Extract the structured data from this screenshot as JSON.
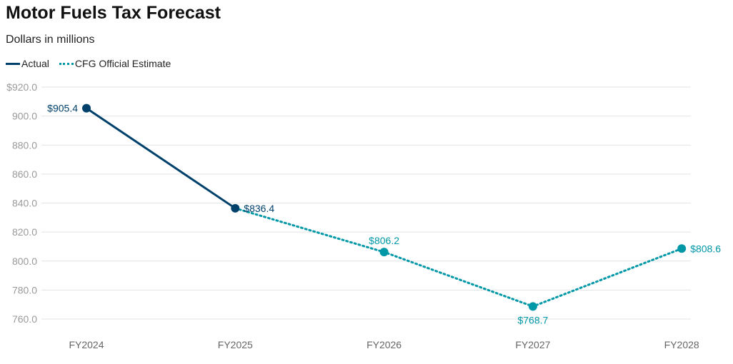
{
  "chart_data": {
    "type": "line",
    "title": "Motor Fuels Tax Forecast",
    "subtitle": "Dollars in millions",
    "categories": [
      "FY2024",
      "FY2025",
      "FY2026",
      "FY2027",
      "FY2028"
    ],
    "ylim": [
      760,
      920
    ],
    "yticks": [
      760,
      780,
      800,
      820,
      840,
      860,
      880,
      900,
      920
    ],
    "ytick_labels": [
      "760.0",
      "780.0",
      "800.0",
      "820.0",
      "840.0",
      "860.0",
      "880.0",
      "900.0",
      "$920.0"
    ],
    "grid": true,
    "legend_placement": "top-left",
    "series": [
      {
        "name": "Actual",
        "color": "#00416b",
        "style": "solid",
        "values": [
          905.4,
          836.4,
          null,
          null,
          null
        ],
        "labels": [
          "$905.4",
          "$836.4",
          null,
          null,
          null
        ],
        "label_positions": [
          "left",
          "right",
          null,
          null,
          null
        ]
      },
      {
        "name": "CFG Official Estimate",
        "color": "#0097a7",
        "style": "dotted",
        "values": [
          null,
          836.4,
          806.2,
          768.7,
          808.6
        ],
        "labels": [
          null,
          null,
          "$806.2",
          "$768.7",
          "$808.6"
        ],
        "label_positions": [
          null,
          null,
          "above",
          "below",
          "right"
        ]
      }
    ]
  }
}
